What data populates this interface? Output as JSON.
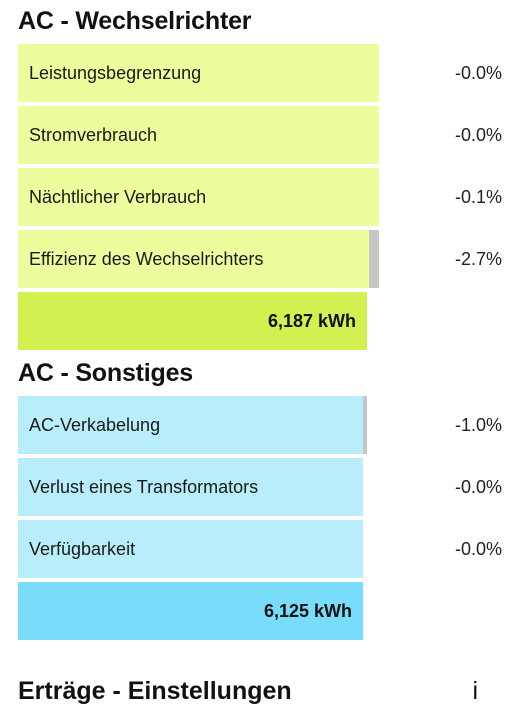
{
  "section_ac_inverter": {
    "title": "AC - Wechselrichter",
    "fill_color": "#ecfd9e",
    "total_color": "#d0f14f",
    "rows": [
      {
        "label": "Leistungsbegrenzung",
        "value": "-0.0%"
      },
      {
        "label": "Stromverbrauch",
        "value": "-0.0%"
      },
      {
        "label": "Nächtlicher Verbrauch",
        "value": "-0.1%"
      },
      {
        "label": "Effizienz des Wechselrichters",
        "value": "-2.7%"
      }
    ],
    "total": "6,187 kWh"
  },
  "section_ac_other": {
    "title": "AC - Sonstiges",
    "fill_color": "#b8eefc",
    "total_color": "#79dcfa",
    "rows": [
      {
        "label": "AC-Verkabelung",
        "value": "-1.0%"
      },
      {
        "label": "Verlust eines Transformators",
        "value": "-0.0%"
      },
      {
        "label": "Verfügbarkeit",
        "value": "-0.0%"
      }
    ],
    "total": "6,125 kWh"
  },
  "next_section": {
    "title": "Erträge - Einstellungen",
    "trailing_text": "i"
  }
}
